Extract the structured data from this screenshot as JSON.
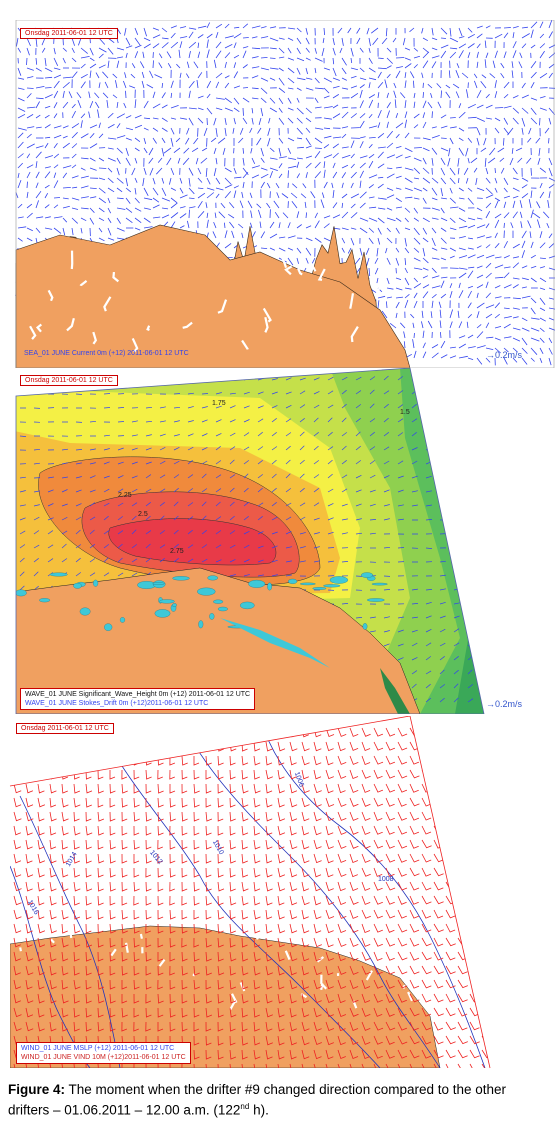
{
  "panels": [
    {
      "id": "sea",
      "header": "Onsdag 2011-06-01 12 UTC",
      "captions": [
        "SEA_01 JUNE Current 0m (+12) 2011-06-01 12 UTC"
      ],
      "scale_label": "0.2m/s",
      "contour_labels": []
    },
    {
      "id": "wave",
      "header": "Onsdag 2011-06-01 12 UTC",
      "captions": [
        "WAVE_01 JUNE Significant_Wave_Height 0m (+12) 2011-06-01 12 UTC",
        "WAVE_01 JUNE Stokes_Drift 0m (+12)2011-06-01 12 UTC"
      ],
      "scale_label": "0.2m/s",
      "contour_labels": [
        "1.75",
        "1.5",
        "2.25",
        "2.5",
        "2.75"
      ]
    },
    {
      "id": "wind",
      "header": "Onsdag 2011-06-01 12 UTC",
      "captions": [
        "WIND_01 JUNE MSLP (+12) 2011-06-01 12 UTC",
        "WIND_01 JUNE VIND 10M (+12)2011-06-01 12 UTC"
      ],
      "scale_label": "",
      "contour_labels": [
        "1006",
        "1008",
        "1010",
        "1012",
        "1014",
        "1016"
      ]
    }
  ],
  "figure": {
    "label": "Figure 4:",
    "text": " The moment when the drifter #9 changed direction compared to the other drifters – 01.06.2011 – 12.00 a.m. (122",
    "superscript": "nd",
    "suffix": " h)."
  },
  "colors": {
    "land": "#f0a060",
    "vector_blue": "#3344ee",
    "vector_red": "#ee2222",
    "wave_bands": [
      "#3aa858",
      "#5cbf5c",
      "#8fd04f",
      "#c5e04a",
      "#f4f045",
      "#f5c03c",
      "#f08a3c",
      "#ec5a48",
      "#e83a48"
    ],
    "ice_cyan": "#3ec8d8"
  }
}
